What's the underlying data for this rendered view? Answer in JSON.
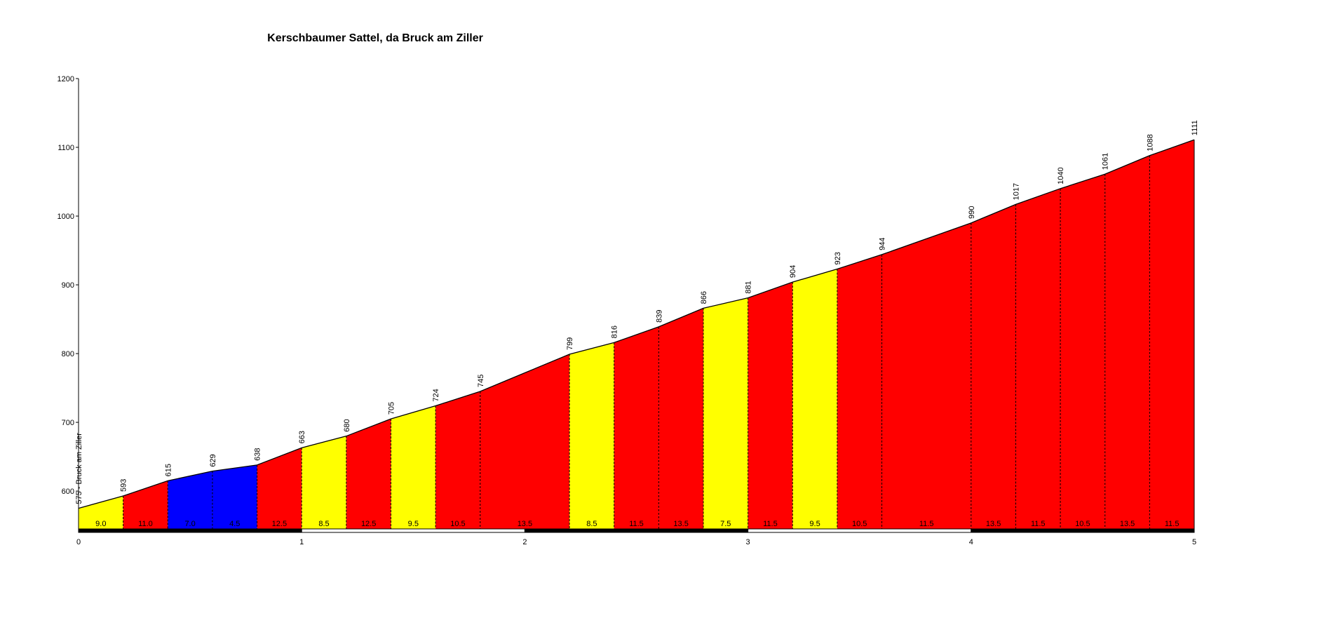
{
  "chart_data": {
    "type": "area",
    "title": "Kerschbaumer Sattel, da Bruck am Ziller",
    "start_label": "575 - Bruck am Ziller",
    "xlim": [
      0,
      5
    ],
    "ylim": [
      545,
      1200
    ],
    "x_ticks": [
      0,
      1,
      2,
      3,
      4,
      5
    ],
    "y_ticks": [
      600,
      700,
      800,
      900,
      1000,
      1100,
      1200
    ],
    "x": [
      0,
      0.2,
      0.4,
      0.6,
      0.8,
      1.0,
      1.2,
      1.4,
      1.6,
      1.8,
      2.0,
      2.2,
      2.4,
      2.6,
      2.8,
      3.0,
      3.2,
      3.4,
      3.6,
      3.8,
      4.0,
      4.2,
      4.4,
      4.6,
      4.8,
      5.0
    ],
    "elevation": [
      575,
      593,
      615,
      629,
      638,
      663,
      680,
      705,
      724,
      745,
      772,
      799,
      816,
      839,
      866,
      881,
      904,
      923,
      944,
      967,
      990,
      1017,
      1040,
      1061,
      1088,
      1111
    ],
    "elevation_labels": [
      {
        "x": 0.2,
        "label": "593"
      },
      {
        "x": 0.4,
        "label": "615"
      },
      {
        "x": 0.6,
        "label": "629"
      },
      {
        "x": 0.8,
        "label": "638"
      },
      {
        "x": 1.0,
        "label": "663"
      },
      {
        "x": 1.2,
        "label": "680"
      },
      {
        "x": 1.4,
        "label": "705"
      },
      {
        "x": 1.6,
        "label": "724"
      },
      {
        "x": 1.8,
        "label": "745"
      },
      {
        "x": 2.2,
        "label": "799"
      },
      {
        "x": 2.4,
        "label": "816"
      },
      {
        "x": 2.6,
        "label": "839"
      },
      {
        "x": 2.8,
        "label": "866"
      },
      {
        "x": 3.0,
        "label": "881"
      },
      {
        "x": 3.2,
        "label": "904"
      },
      {
        "x": 3.4,
        "label": "923"
      },
      {
        "x": 3.6,
        "label": "944"
      },
      {
        "x": 4.0,
        "label": "990"
      },
      {
        "x": 4.2,
        "label": "1017"
      },
      {
        "x": 4.4,
        "label": "1040"
      },
      {
        "x": 4.6,
        "label": "1061"
      },
      {
        "x": 4.8,
        "label": "1088"
      },
      {
        "x": 5.0,
        "label": "1111"
      }
    ],
    "segments": [
      {
        "x0": 0.0,
        "x1": 0.2,
        "gradient": "9.0",
        "color": "#ffff00"
      },
      {
        "x0": 0.2,
        "x1": 0.4,
        "gradient": "11.0",
        "color": "#ff0000"
      },
      {
        "x0": 0.4,
        "x1": 0.6,
        "gradient": "7.0",
        "color": "#0000ff"
      },
      {
        "x0": 0.6,
        "x1": 0.8,
        "gradient": "4.5",
        "color": "#0000ff"
      },
      {
        "x0": 0.8,
        "x1": 1.0,
        "gradient": "12.5",
        "color": "#ff0000"
      },
      {
        "x0": 1.0,
        "x1": 1.2,
        "gradient": "8.5",
        "color": "#ffff00"
      },
      {
        "x0": 1.2,
        "x1": 1.4,
        "gradient": "12.5",
        "color": "#ff0000"
      },
      {
        "x0": 1.4,
        "x1": 1.6,
        "gradient": "9.5",
        "color": "#ffff00"
      },
      {
        "x0": 1.6,
        "x1": 1.8,
        "gradient": "10.5",
        "color": "#ff0000"
      },
      {
        "x0": 1.8,
        "x1": 2.2,
        "gradient": "13.5",
        "color": "#ff0000"
      },
      {
        "x0": 2.2,
        "x1": 2.4,
        "gradient": "8.5",
        "color": "#ffff00"
      },
      {
        "x0": 2.4,
        "x1": 2.6,
        "gradient": "11.5",
        "color": "#ff0000"
      },
      {
        "x0": 2.6,
        "x1": 2.8,
        "gradient": "13.5",
        "color": "#ff0000"
      },
      {
        "x0": 2.8,
        "x1": 3.0,
        "gradient": "7.5",
        "color": "#ffff00"
      },
      {
        "x0": 3.0,
        "x1": 3.2,
        "gradient": "11.5",
        "color": "#ff0000"
      },
      {
        "x0": 3.2,
        "x1": 3.4,
        "gradient": "9.5",
        "color": "#ffff00"
      },
      {
        "x0": 3.4,
        "x1": 3.6,
        "gradient": "10.5",
        "color": "#ff0000"
      },
      {
        "x0": 3.6,
        "x1": 4.0,
        "gradient": "11.5",
        "color": "#ff0000"
      },
      {
        "x0": 4.0,
        "x1": 4.2,
        "gradient": "13.5",
        "color": "#ff0000"
      },
      {
        "x0": 4.2,
        "x1": 4.4,
        "gradient": "11.5",
        "color": "#ff0000"
      },
      {
        "x0": 4.4,
        "x1": 4.6,
        "gradient": "10.5",
        "color": "#ff0000"
      },
      {
        "x0": 4.6,
        "x1": 4.8,
        "gradient": "13.5",
        "color": "#ff0000"
      },
      {
        "x0": 4.8,
        "x1": 5.0,
        "gradient": "11.5",
        "color": "#ff0000"
      }
    ],
    "km_bar_colors": [
      "#000000",
      "#ffffff"
    ],
    "grid": false
  }
}
